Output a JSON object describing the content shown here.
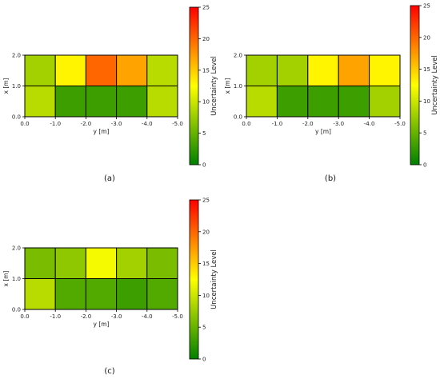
{
  "chart_data": [
    {
      "type": "heatmap",
      "panel_label": "(a)",
      "xlabel": "y [m]",
      "ylabel": "x [m]",
      "x_ticks": [
        "0.0",
        "-1.0",
        "-2.0",
        "-3.0",
        "-4.0",
        "-5.0"
      ],
      "y_ticks": [
        "0.0",
        "1.0",
        "2.0"
      ],
      "rows": [
        {
          "x_range": [
            1.0,
            2.0
          ],
          "values": [
            8,
            13,
            20,
            17,
            9
          ]
        },
        {
          "x_range": [
            0.0,
            1.0
          ],
          "values": [
            9,
            3,
            3,
            3,
            9
          ]
        }
      ],
      "colorbar": {
        "label": "Uncertainty Level",
        "range": [
          0,
          25
        ],
        "ticks": [
          "0",
          "5",
          "10",
          "15",
          "20",
          "25"
        ],
        "colormap": [
          "#008000",
          "#ffff00",
          "#ff0000"
        ]
      }
    },
    {
      "type": "heatmap",
      "panel_label": "(b)",
      "xlabel": "y [m]",
      "ylabel": "x [m]",
      "x_ticks": [
        "0.0",
        "-1.0",
        "-2.0",
        "-3.0",
        "-4.0",
        "-5.0"
      ],
      "y_ticks": [
        "0.0",
        "1.0",
        "2.0"
      ],
      "rows": [
        {
          "x_range": [
            1.0,
            2.0
          ],
          "values": [
            8,
            8,
            13,
            17,
            13
          ]
        },
        {
          "x_range": [
            0.0,
            1.0
          ],
          "values": [
            9,
            3,
            3,
            3,
            8
          ]
        }
      ],
      "colorbar": {
        "label": "Uncertainty Level",
        "range": [
          0,
          25
        ],
        "ticks": [
          "0",
          "5",
          "10",
          "15",
          "20",
          "25"
        ],
        "colormap": [
          "#008000",
          "#ffff00",
          "#ff0000"
        ]
      }
    },
    {
      "type": "heatmap",
      "panel_label": "(c)",
      "xlabel": "y [m]",
      "ylabel": "x [m]",
      "x_ticks": [
        "0.0",
        "-1.0",
        "-2.0",
        "-3.0",
        "-4.0",
        "-5.0"
      ],
      "y_ticks": [
        "0.0",
        "1.0",
        "2.0"
      ],
      "rows": [
        {
          "x_range": [
            1.0,
            2.0
          ],
          "values": [
            6,
            7,
            12,
            8,
            6
          ]
        },
        {
          "x_range": [
            0.0,
            1.0
          ],
          "values": [
            9,
            4,
            4,
            3,
            4
          ]
        }
      ],
      "colorbar": {
        "label": "Uncertainty Level",
        "range": [
          0,
          25
        ],
        "ticks": [
          "0",
          "5",
          "10",
          "15",
          "20",
          "25"
        ],
        "colormap": [
          "#008000",
          "#ffff00",
          "#ff0000"
        ]
      }
    }
  ]
}
